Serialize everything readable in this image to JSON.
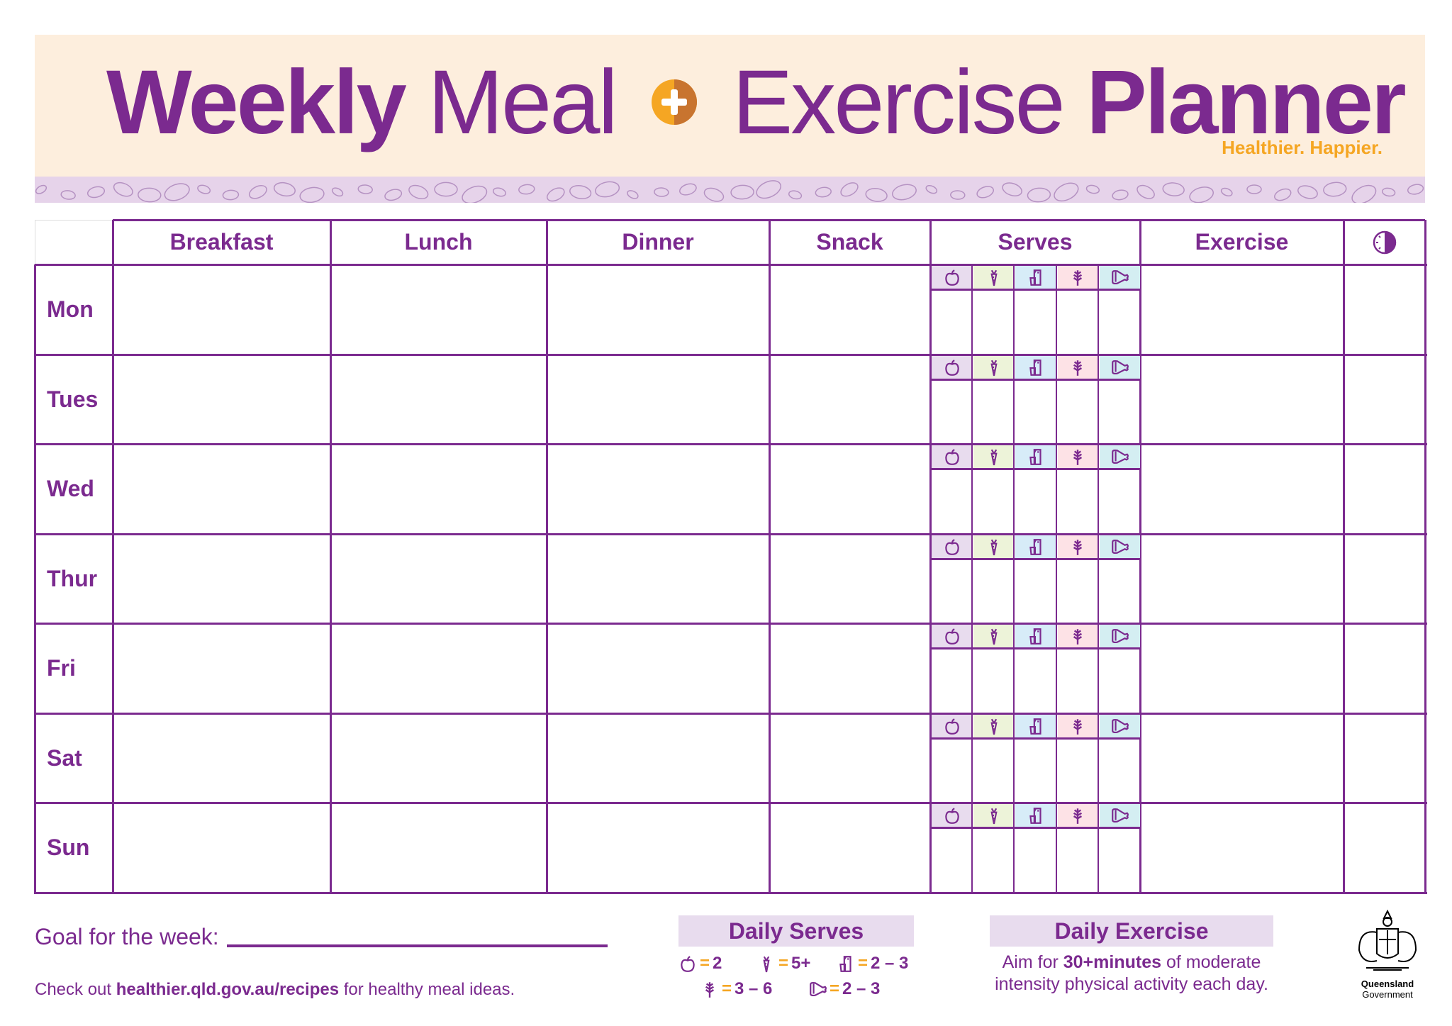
{
  "header": {
    "title_part1": "Weekly",
    "title_part2": "Meal",
    "title_part3": "Exercise",
    "title_part4": "Planner",
    "tagline": "Healthier. Happier."
  },
  "columns": [
    "Breakfast",
    "Lunch",
    "Dinner",
    "Snack",
    "Serves",
    "Exercise"
  ],
  "time_column_icon": "clock-icon",
  "days": [
    "Mon",
    "Tues",
    "Wed",
    "Thur",
    "Fri",
    "Sat",
    "Sun"
  ],
  "serve_groups": [
    {
      "icon": "apple-icon",
      "color": "#e8dcee"
    },
    {
      "icon": "carrot-icon",
      "color": "#edf3d9"
    },
    {
      "icon": "milk-icon",
      "color": "#d7ecf8"
    },
    {
      "icon": "wheat-icon",
      "color": "#fde2e6"
    },
    {
      "icon": "meat-icon",
      "color": "#d4eef2"
    }
  ],
  "footer": {
    "goal_label": "Goal for the week:",
    "goal_value": "",
    "checkout_prefix": "Check out ",
    "checkout_link": "healthier.qld.gov.au/recipes",
    "checkout_suffix": " for healthy meal ideas.",
    "daily_serves_title": "Daily Serves",
    "daily_serves": [
      {
        "icon": "apple-icon",
        "value": "2"
      },
      {
        "icon": "carrot-icon",
        "value": "5+"
      },
      {
        "icon": "milk-icon",
        "value": "2 – 3"
      },
      {
        "icon": "wheat-icon",
        "value": "3 – 6"
      },
      {
        "icon": "meat-icon",
        "value": "2 – 3"
      }
    ],
    "daily_exercise_title": "Daily Exercise",
    "aim_prefix": "Aim for ",
    "aim_bold": "30+minutes",
    "aim_suffix": " of moderate intensity physical activity each day.",
    "logo_line1": "Queensland",
    "logo_line2": "Government"
  },
  "colors": {
    "purple": "#7b2a8f",
    "orange": "#f5a623",
    "header_bg": "#fdeedd",
    "band": "#e6d3ea"
  }
}
